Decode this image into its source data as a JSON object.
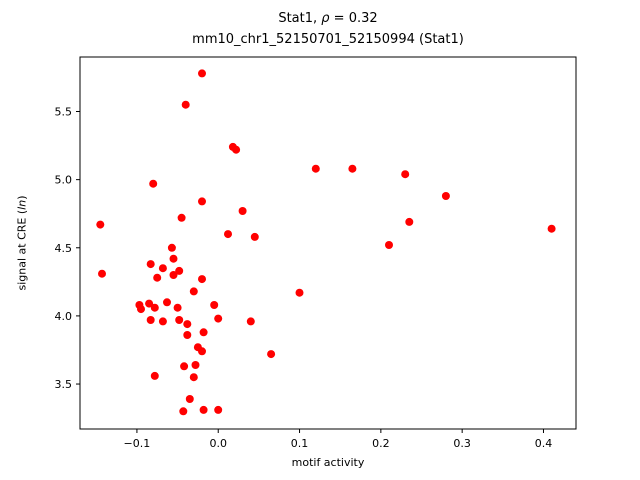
{
  "chart_data": {
    "type": "scatter",
    "title": {
      "prefix": "Stat1, ",
      "rho": "ρ",
      "suffix": " = 0.32"
    },
    "subtitle": "mm10_chr1_52150701_52150994 (Stat1)",
    "xlabel": "motif activity",
    "ylabel": {
      "prefix": "signal at CRE (",
      "italic": "ln",
      "suffix": ")"
    },
    "xlim": [
      -0.17,
      0.44
    ],
    "ylim": [
      3.17,
      5.9
    ],
    "x_ticks": {
      "values": [
        -0.1,
        0.0,
        0.1,
        0.2,
        0.3,
        0.4
      ],
      "labels": [
        "−0.1",
        "0.0",
        "0.1",
        "0.2",
        "0.3",
        "0.4"
      ]
    },
    "y_ticks": {
      "values": [
        3.5,
        4.0,
        4.5,
        5.0,
        5.5
      ],
      "labels": [
        "3.5",
        "4.0",
        "4.5",
        "5.0",
        "5.5"
      ]
    },
    "marker_color": "#ff0000",
    "marker_radius": 4,
    "grid": false,
    "legend": "none",
    "points": [
      [
        -0.145,
        4.67
      ],
      [
        -0.143,
        4.31
      ],
      [
        -0.08,
        4.97
      ],
      [
        -0.04,
        5.55
      ],
      [
        -0.02,
        5.78
      ],
      [
        0.018,
        5.24
      ],
      [
        0.022,
        5.22
      ],
      [
        0.12,
        5.08
      ],
      [
        0.165,
        5.08
      ],
      [
        0.23,
        5.04
      ],
      [
        0.28,
        4.88
      ],
      [
        0.235,
        4.69
      ],
      [
        0.21,
        4.52
      ],
      [
        0.41,
        4.64
      ],
      [
        -0.02,
        4.84
      ],
      [
        -0.045,
        4.72
      ],
      [
        0.03,
        4.77
      ],
      [
        0.012,
        4.6
      ],
      [
        0.045,
        4.58
      ],
      [
        -0.057,
        4.5
      ],
      [
        -0.055,
        4.42
      ],
      [
        -0.083,
        4.38
      ],
      [
        -0.068,
        4.35
      ],
      [
        -0.075,
        4.28
      ],
      [
        -0.055,
        4.3
      ],
      [
        -0.048,
        4.33
      ],
      [
        -0.02,
        4.27
      ],
      [
        -0.03,
        4.18
      ],
      [
        0.1,
        4.17
      ],
      [
        -0.097,
        4.08
      ],
      [
        -0.095,
        4.05
      ],
      [
        -0.085,
        4.09
      ],
      [
        -0.078,
        4.06
      ],
      [
        -0.063,
        4.1
      ],
      [
        -0.05,
        4.06
      ],
      [
        -0.005,
        4.08
      ],
      [
        -0.083,
        3.97
      ],
      [
        -0.068,
        3.96
      ],
      [
        -0.048,
        3.97
      ],
      [
        -0.038,
        3.94
      ],
      [
        0.0,
        3.98
      ],
      [
        0.04,
        3.96
      ],
      [
        -0.038,
        3.86
      ],
      [
        -0.018,
        3.88
      ],
      [
        -0.025,
        3.77
      ],
      [
        -0.02,
        3.74
      ],
      [
        0.065,
        3.72
      ],
      [
        -0.042,
        3.63
      ],
      [
        -0.028,
        3.64
      ],
      [
        -0.078,
        3.56
      ],
      [
        -0.03,
        3.55
      ],
      [
        -0.035,
        3.39
      ],
      [
        -0.043,
        3.3
      ],
      [
        -0.018,
        3.31
      ],
      [
        0.0,
        3.31
      ]
    ]
  }
}
